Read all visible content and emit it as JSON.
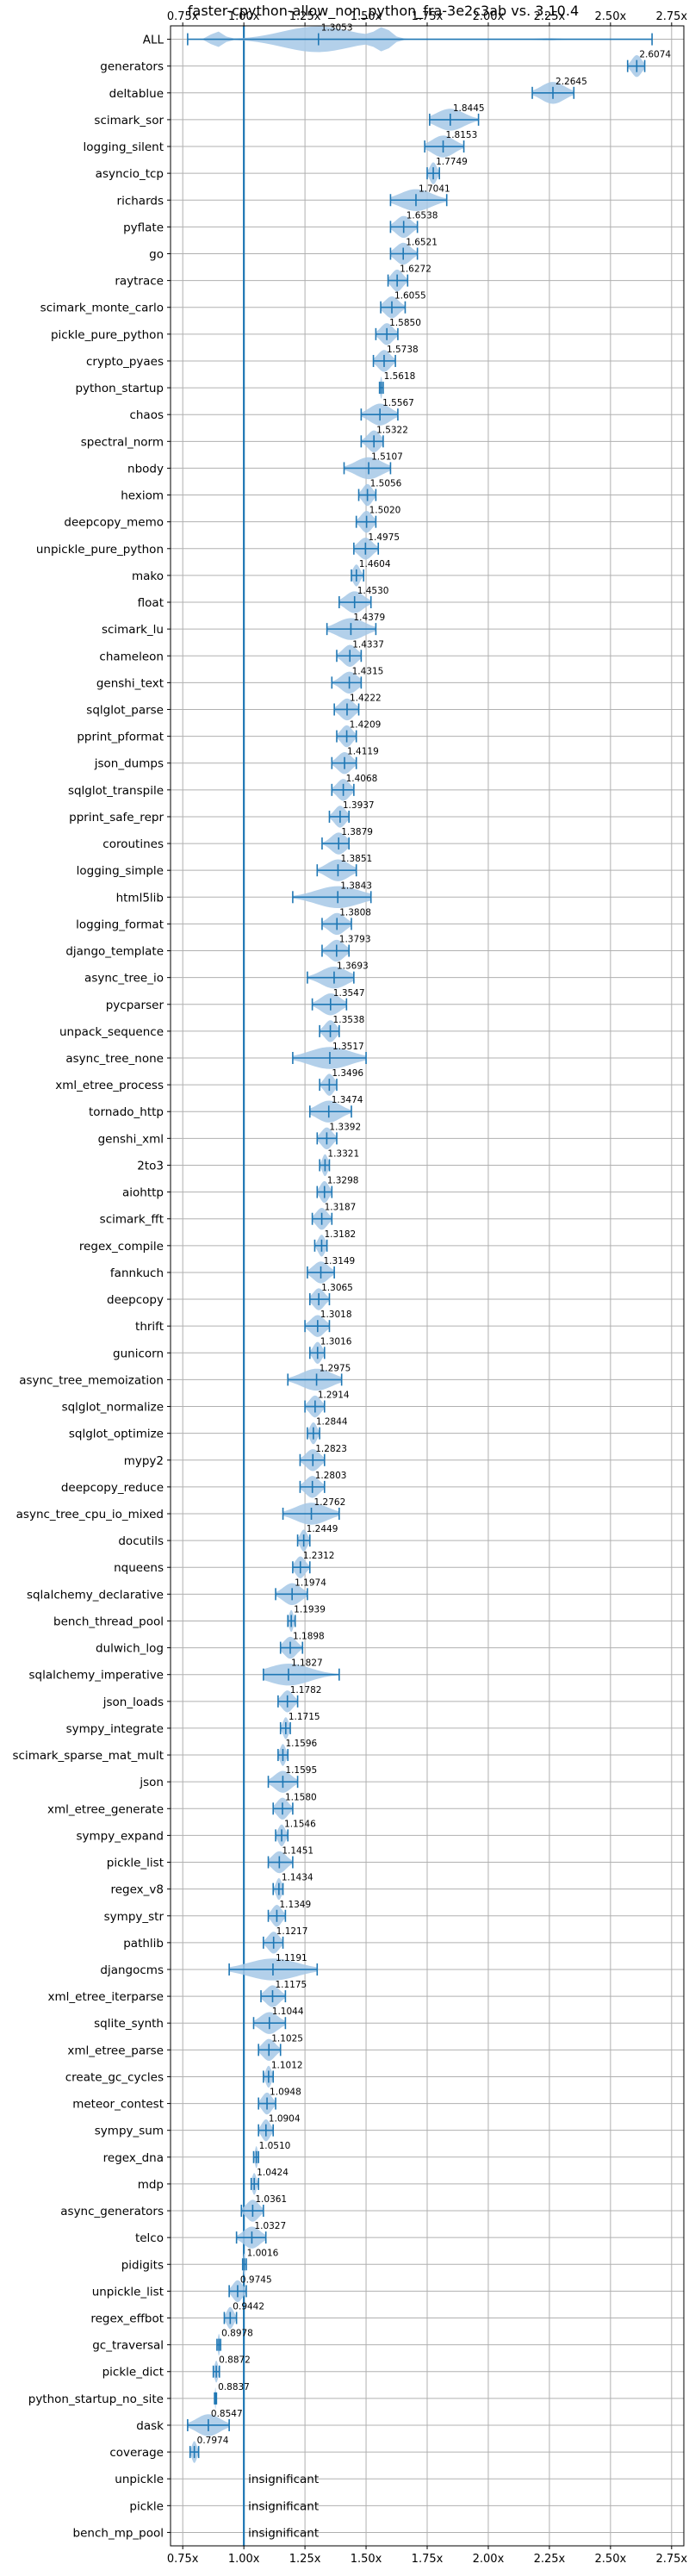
{
  "chart_data": {
    "type": "violin",
    "title": "faster-cpython-allow_non_python_fra-3e2c3ab vs. 3.10.4",
    "xlim": [
      0.7,
      2.8
    ],
    "xticks": [
      0.75,
      1.0,
      1.25,
      1.5,
      1.75,
      2.0,
      2.25,
      2.5,
      2.75
    ],
    "xtick_labels": [
      "0.75x",
      "1.00x",
      "1.25x",
      "1.50x",
      "1.75x",
      "2.00x",
      "2.25x",
      "2.50x",
      "2.75x"
    ],
    "reference_line": 1.0,
    "grid": true,
    "colors": {
      "accent": "#1f77b4",
      "violin": "#a6c8e6",
      "grid": "#b0b0b0"
    },
    "insignificant_label": "insignificant",
    "benchmarks": [
      {
        "name": "ALL",
        "value": 1.3053,
        "label": "1.3053",
        "min": 0.77,
        "max": 2.67
      },
      {
        "name": "generators",
        "value": 2.6074,
        "label": "2.6074",
        "min": 2.57,
        "max": 2.64
      },
      {
        "name": "deltablue",
        "value": 2.2645,
        "label": "2.2645",
        "min": 2.18,
        "max": 2.35
      },
      {
        "name": "scimark_sor",
        "value": 1.8445,
        "label": "1.8445",
        "min": 1.76,
        "max": 1.96
      },
      {
        "name": "logging_silent",
        "value": 1.8153,
        "label": "1.8153",
        "min": 1.74,
        "max": 1.9
      },
      {
        "name": "asyncio_tcp",
        "value": 1.7749,
        "label": "1.7749",
        "min": 1.75,
        "max": 1.8
      },
      {
        "name": "richards",
        "value": 1.7041,
        "label": "1.7041",
        "min": 1.6,
        "max": 1.83
      },
      {
        "name": "pyflate",
        "value": 1.6538,
        "label": "1.6538",
        "min": 1.6,
        "max": 1.71
      },
      {
        "name": "go",
        "value": 1.6521,
        "label": "1.6521",
        "min": 1.6,
        "max": 1.71
      },
      {
        "name": "raytrace",
        "value": 1.6272,
        "label": "1.6272",
        "min": 1.59,
        "max": 1.67
      },
      {
        "name": "scimark_monte_carlo",
        "value": 1.6055,
        "label": "1.6055",
        "min": 1.56,
        "max": 1.66
      },
      {
        "name": "pickle_pure_python",
        "value": 1.585,
        "label": "1.5850",
        "min": 1.54,
        "max": 1.63
      },
      {
        "name": "crypto_pyaes",
        "value": 1.5738,
        "label": "1.5738",
        "min": 1.53,
        "max": 1.62
      },
      {
        "name": "python_startup",
        "value": 1.5618,
        "label": "1.5618",
        "min": 1.555,
        "max": 1.57
      },
      {
        "name": "chaos",
        "value": 1.5567,
        "label": "1.5567",
        "min": 1.48,
        "max": 1.63
      },
      {
        "name": "spectral_norm",
        "value": 1.5322,
        "label": "1.5322",
        "min": 1.48,
        "max": 1.57
      },
      {
        "name": "nbody",
        "value": 1.5107,
        "label": "1.5107",
        "min": 1.41,
        "max": 1.6
      },
      {
        "name": "hexiom",
        "value": 1.5056,
        "label": "1.5056",
        "min": 1.47,
        "max": 1.54
      },
      {
        "name": "deepcopy_memo",
        "value": 1.502,
        "label": "1.5020",
        "min": 1.46,
        "max": 1.54
      },
      {
        "name": "unpickle_pure_python",
        "value": 1.4975,
        "label": "1.4975",
        "min": 1.45,
        "max": 1.55
      },
      {
        "name": "mako",
        "value": 1.4604,
        "label": "1.4604",
        "min": 1.44,
        "max": 1.49
      },
      {
        "name": "float",
        "value": 1.453,
        "label": "1.4530",
        "min": 1.39,
        "max": 1.52
      },
      {
        "name": "scimark_lu",
        "value": 1.4379,
        "label": "1.4379",
        "min": 1.34,
        "max": 1.54
      },
      {
        "name": "chameleon",
        "value": 1.4337,
        "label": "1.4337",
        "min": 1.38,
        "max": 1.48
      },
      {
        "name": "genshi_text",
        "value": 1.4315,
        "label": "1.4315",
        "min": 1.36,
        "max": 1.48
      },
      {
        "name": "sqlglot_parse",
        "value": 1.4222,
        "label": "1.4222",
        "min": 1.37,
        "max": 1.47
      },
      {
        "name": "pprint_pformat",
        "value": 1.4209,
        "label": "1.4209",
        "min": 1.38,
        "max": 1.46
      },
      {
        "name": "json_dumps",
        "value": 1.4119,
        "label": "1.4119",
        "min": 1.36,
        "max": 1.46
      },
      {
        "name": "sqlglot_transpile",
        "value": 1.4068,
        "label": "1.4068",
        "min": 1.36,
        "max": 1.45
      },
      {
        "name": "pprint_safe_repr",
        "value": 1.3937,
        "label": "1.3937",
        "min": 1.35,
        "max": 1.43
      },
      {
        "name": "coroutines",
        "value": 1.3879,
        "label": "1.3879",
        "min": 1.32,
        "max": 1.43
      },
      {
        "name": "logging_simple",
        "value": 1.3851,
        "label": "1.3851",
        "min": 1.3,
        "max": 1.46
      },
      {
        "name": "html5lib",
        "value": 1.3843,
        "label": "1.3843",
        "min": 1.2,
        "max": 1.52
      },
      {
        "name": "logging_format",
        "value": 1.3808,
        "label": "1.3808",
        "min": 1.32,
        "max": 1.44
      },
      {
        "name": "django_template",
        "value": 1.3793,
        "label": "1.3793",
        "min": 1.32,
        "max": 1.43
      },
      {
        "name": "async_tree_io",
        "value": 1.3693,
        "label": "1.3693",
        "min": 1.26,
        "max": 1.45
      },
      {
        "name": "pycparser",
        "value": 1.3547,
        "label": "1.3547",
        "min": 1.28,
        "max": 1.42
      },
      {
        "name": "unpack_sequence",
        "value": 1.3538,
        "label": "1.3538",
        "min": 1.31,
        "max": 1.39
      },
      {
        "name": "async_tree_none",
        "value": 1.3517,
        "label": "1.3517",
        "min": 1.2,
        "max": 1.5
      },
      {
        "name": "xml_etree_process",
        "value": 1.3496,
        "label": "1.3496",
        "min": 1.31,
        "max": 1.38
      },
      {
        "name": "tornado_http",
        "value": 1.3474,
        "label": "1.3474",
        "min": 1.27,
        "max": 1.44
      },
      {
        "name": "genshi_xml",
        "value": 1.3392,
        "label": "1.3392",
        "min": 1.3,
        "max": 1.38
      },
      {
        "name": "2to3",
        "value": 1.3321,
        "label": "1.3321",
        "min": 1.31,
        "max": 1.35
      },
      {
        "name": "aiohttp",
        "value": 1.3298,
        "label": "1.3298",
        "min": 1.3,
        "max": 1.36
      },
      {
        "name": "scimark_fft",
        "value": 1.3187,
        "label": "1.3187",
        "min": 1.28,
        "max": 1.36
      },
      {
        "name": "regex_compile",
        "value": 1.3182,
        "label": "1.3182",
        "min": 1.29,
        "max": 1.34
      },
      {
        "name": "fannkuch",
        "value": 1.3149,
        "label": "1.3149",
        "min": 1.26,
        "max": 1.37
      },
      {
        "name": "deepcopy",
        "value": 1.3065,
        "label": "1.3065",
        "min": 1.27,
        "max": 1.35
      },
      {
        "name": "thrift",
        "value": 1.3018,
        "label": "1.3018",
        "min": 1.25,
        "max": 1.35
      },
      {
        "name": "gunicorn",
        "value": 1.3016,
        "label": "1.3016",
        "min": 1.27,
        "max": 1.33
      },
      {
        "name": "async_tree_memoization",
        "value": 1.2975,
        "label": "1.2975",
        "min": 1.18,
        "max": 1.4
      },
      {
        "name": "sqlglot_normalize",
        "value": 1.2914,
        "label": "1.2914",
        "min": 1.25,
        "max": 1.33
      },
      {
        "name": "sqlglot_optimize",
        "value": 1.2844,
        "label": "1.2844",
        "min": 1.26,
        "max": 1.31
      },
      {
        "name": "mypy2",
        "value": 1.2823,
        "label": "1.2823",
        "min": 1.23,
        "max": 1.33
      },
      {
        "name": "deepcopy_reduce",
        "value": 1.2803,
        "label": "1.2803",
        "min": 1.23,
        "max": 1.33
      },
      {
        "name": "async_tree_cpu_io_mixed",
        "value": 1.2762,
        "label": "1.2762",
        "min": 1.16,
        "max": 1.39
      },
      {
        "name": "docutils",
        "value": 1.2449,
        "label": "1.2449",
        "min": 1.22,
        "max": 1.27
      },
      {
        "name": "nqueens",
        "value": 1.2312,
        "label": "1.2312",
        "min": 1.2,
        "max": 1.27
      },
      {
        "name": "sqlalchemy_declarative",
        "value": 1.1974,
        "label": "1.1974",
        "min": 1.13,
        "max": 1.26
      },
      {
        "name": "bench_thread_pool",
        "value": 1.1939,
        "label": "1.1939",
        "min": 1.18,
        "max": 1.21
      },
      {
        "name": "dulwich_log",
        "value": 1.1898,
        "label": "1.1898",
        "min": 1.15,
        "max": 1.24
      },
      {
        "name": "sqlalchemy_imperative",
        "value": 1.1827,
        "label": "1.1827",
        "min": 1.08,
        "max": 1.39
      },
      {
        "name": "json_loads",
        "value": 1.1782,
        "label": "1.1782",
        "min": 1.14,
        "max": 1.22
      },
      {
        "name": "sympy_integrate",
        "value": 1.1715,
        "label": "1.1715",
        "min": 1.15,
        "max": 1.19
      },
      {
        "name": "scimark_sparse_mat_mult",
        "value": 1.1596,
        "label": "1.1596",
        "min": 1.14,
        "max": 1.18
      },
      {
        "name": "json",
        "value": 1.1595,
        "label": "1.1595",
        "min": 1.1,
        "max": 1.22
      },
      {
        "name": "xml_etree_generate",
        "value": 1.158,
        "label": "1.1580",
        "min": 1.12,
        "max": 1.2
      },
      {
        "name": "sympy_expand",
        "value": 1.1546,
        "label": "1.1546",
        "min": 1.13,
        "max": 1.18
      },
      {
        "name": "pickle_list",
        "value": 1.1451,
        "label": "1.1451",
        "min": 1.1,
        "max": 1.2
      },
      {
        "name": "regex_v8",
        "value": 1.1434,
        "label": "1.1434",
        "min": 1.12,
        "max": 1.16
      },
      {
        "name": "sympy_str",
        "value": 1.1349,
        "label": "1.1349",
        "min": 1.1,
        "max": 1.17
      },
      {
        "name": "pathlib",
        "value": 1.1217,
        "label": "1.1217",
        "min": 1.08,
        "max": 1.16
      },
      {
        "name": "djangocms",
        "value": 1.1191,
        "label": "1.1191",
        "min": 0.94,
        "max": 1.3
      },
      {
        "name": "xml_etree_iterparse",
        "value": 1.1175,
        "label": "1.1175",
        "min": 1.07,
        "max": 1.17
      },
      {
        "name": "sqlite_synth",
        "value": 1.1044,
        "label": "1.1044",
        "min": 1.04,
        "max": 1.17
      },
      {
        "name": "xml_etree_parse",
        "value": 1.1025,
        "label": "1.1025",
        "min": 1.06,
        "max": 1.15
      },
      {
        "name": "create_gc_cycles",
        "value": 1.1012,
        "label": "1.1012",
        "min": 1.08,
        "max": 1.12
      },
      {
        "name": "meteor_contest",
        "value": 1.0948,
        "label": "1.0948",
        "min": 1.06,
        "max": 1.13
      },
      {
        "name": "sympy_sum",
        "value": 1.0904,
        "label": "1.0904",
        "min": 1.06,
        "max": 1.12
      },
      {
        "name": "regex_dna",
        "value": 1.051,
        "label": "1.0510",
        "min": 1.04,
        "max": 1.06
      },
      {
        "name": "mdp",
        "value": 1.0424,
        "label": "1.0424",
        "min": 1.03,
        "max": 1.06
      },
      {
        "name": "async_generators",
        "value": 1.0361,
        "label": "1.0361",
        "min": 0.99,
        "max": 1.08
      },
      {
        "name": "telco",
        "value": 1.0327,
        "label": "1.0327",
        "min": 0.97,
        "max": 1.09
      },
      {
        "name": "pidigits",
        "value": 1.0016,
        "label": "1.0016",
        "min": 0.995,
        "max": 1.01
      },
      {
        "name": "unpickle_list",
        "value": 0.9745,
        "label": "0.9745",
        "min": 0.94,
        "max": 1.01
      },
      {
        "name": "regex_effbot",
        "value": 0.9442,
        "label": "0.9442",
        "min": 0.92,
        "max": 0.97
      },
      {
        "name": "gc_traversal",
        "value": 0.8978,
        "label": "0.8978",
        "min": 0.89,
        "max": 0.905
      },
      {
        "name": "pickle_dict",
        "value": 0.8872,
        "label": "0.8872",
        "min": 0.875,
        "max": 0.9
      },
      {
        "name": "python_startup_no_site",
        "value": 0.8837,
        "label": "0.8837",
        "min": 0.88,
        "max": 0.888
      },
      {
        "name": "dask",
        "value": 0.8547,
        "label": "0.8547",
        "min": 0.77,
        "max": 0.94
      },
      {
        "name": "coverage",
        "value": 0.7974,
        "label": "0.7974",
        "min": 0.78,
        "max": 0.815
      },
      {
        "name": "unpickle",
        "value": null,
        "label": "",
        "min": null,
        "max": null
      },
      {
        "name": "pickle",
        "value": null,
        "label": "",
        "min": null,
        "max": null
      },
      {
        "name": "bench_mp_pool",
        "value": null,
        "label": "",
        "min": null,
        "max": null
      }
    ]
  }
}
